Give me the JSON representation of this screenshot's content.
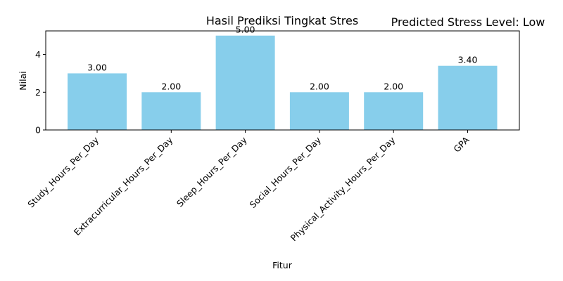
{
  "chart_data": {
    "type": "bar",
    "title": "Hasil Prediksi Tingkat Stres",
    "xlabel": "Fitur",
    "ylabel": "Nilai",
    "categories": [
      "Study_Hours_Per_Day",
      "Extracurricular_Hours_Per_Day",
      "Sleep_Hours_Per_Day",
      "Social_Hours_Per_Day",
      "Physical_Activity_Hours_Per_Day",
      "GPA"
    ],
    "values": [
      3.0,
      2.0,
      5.0,
      2.0,
      2.0,
      3.4
    ],
    "data_labels": [
      "3.00",
      "2.00",
      "5.00",
      "2.00",
      "2.00",
      "3.40"
    ],
    "ylim": [
      0,
      5.25
    ],
    "yticks": [
      0,
      2,
      4
    ],
    "ytick_labels": [
      "0",
      "2",
      "4"
    ],
    "grid": false,
    "bar_color": "#87ceeb",
    "annotation": {
      "text": "Predicted Stress Level: Low",
      "color": "#ff0000"
    }
  }
}
